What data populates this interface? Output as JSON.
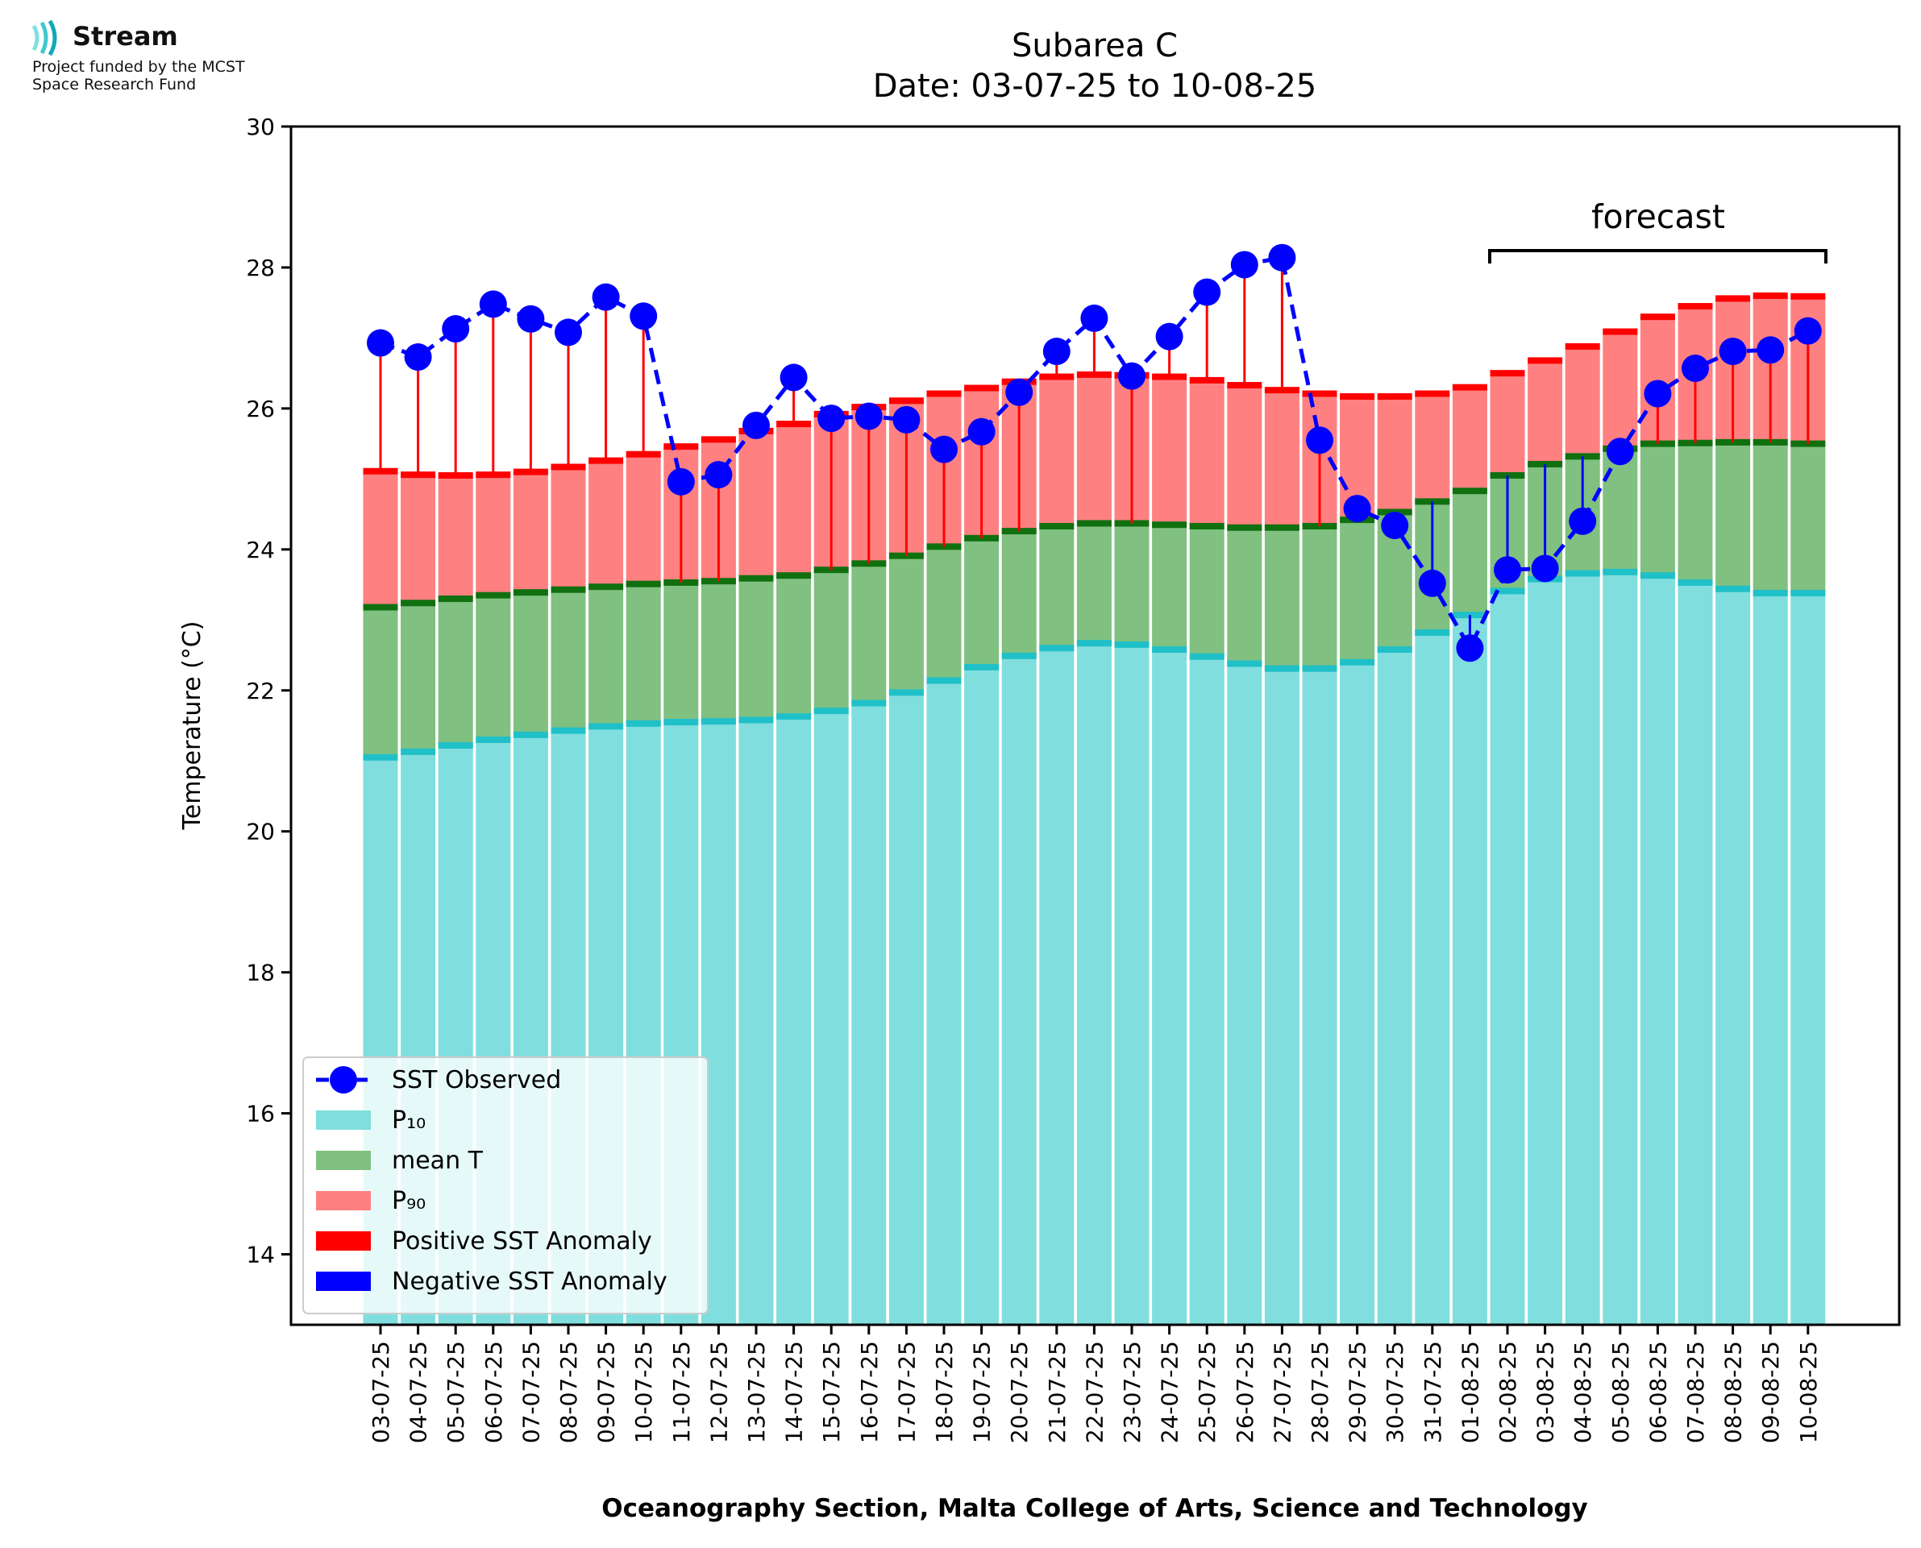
{
  "logo": {
    "name": "Stream",
    "line1": "Project funded by the MCST",
    "line2": "Space Research Fund"
  },
  "colors": {
    "p10": "#80dede",
    "p10_cap": "#20c0c8",
    "mean": "#80c080",
    "mean_cap": "#107010",
    "p90": "#ff8080",
    "p90_cap": "#ff0000",
    "positive_anomaly": "#ff0000",
    "negative_anomaly": "#0000ff",
    "observed": "#0000ff"
  },
  "chart_data": {
    "type": "bar",
    "title": "Subarea C",
    "subtitle": "Date: 03-07-25 to 10-08-25",
    "xlabel": "Oceanography Section, Malta College of Arts, Science and Technology",
    "ylabel": "Temperature (°C)",
    "ylim": [
      13,
      30
    ],
    "yticks": [
      14,
      16,
      18,
      20,
      22,
      24,
      26,
      28,
      30
    ],
    "grid": false,
    "legend_position": "lower-left",
    "annotation": "forecast",
    "forecast_range": [
      "02-08-25",
      "10-08-25"
    ],
    "categories": [
      "03-07-25",
      "04-07-25",
      "05-07-25",
      "06-07-25",
      "07-07-25",
      "08-07-25",
      "09-07-25",
      "10-07-25",
      "11-07-25",
      "12-07-25",
      "13-07-25",
      "14-07-25",
      "15-07-25",
      "16-07-25",
      "17-07-25",
      "18-07-25",
      "19-07-25",
      "20-07-25",
      "21-07-25",
      "22-07-25",
      "23-07-25",
      "24-07-25",
      "25-07-25",
      "26-07-25",
      "27-07-25",
      "28-07-25",
      "29-07-25",
      "30-07-25",
      "31-07-25",
      "01-08-25",
      "02-08-25",
      "03-08-25",
      "04-08-25",
      "05-08-25",
      "06-08-25",
      "07-08-25",
      "08-08-25",
      "09-08-25",
      "10-08-25"
    ],
    "series": [
      {
        "name": "SST Observed",
        "values": [
          26.93,
          26.73,
          27.13,
          27.48,
          27.27,
          27.08,
          27.58,
          27.31,
          24.96,
          25.06,
          25.76,
          26.44,
          25.86,
          25.89,
          25.84,
          25.42,
          25.67,
          26.23,
          26.81,
          27.28,
          26.46,
          27.02,
          27.65,
          28.04,
          28.14,
          25.55,
          24.58,
          24.34,
          23.52,
          22.6,
          23.71,
          23.73,
          24.4,
          25.39,
          26.21,
          26.57,
          26.81,
          26.83,
          27.1
        ]
      },
      {
        "name": "P₁₀",
        "values": [
          21.05,
          21.13,
          21.22,
          21.3,
          21.37,
          21.43,
          21.49,
          21.53,
          21.55,
          21.56,
          21.58,
          21.63,
          21.71,
          21.82,
          21.97,
          22.14,
          22.33,
          22.49,
          22.6,
          22.67,
          22.65,
          22.58,
          22.48,
          22.38,
          22.31,
          22.31,
          22.4,
          22.58,
          22.82,
          23.07,
          23.41,
          23.58,
          23.66,
          23.68,
          23.63,
          23.53,
          23.44,
          23.38,
          23.38
        ]
      },
      {
        "name": "mean T",
        "values": [
          23.18,
          23.24,
          23.3,
          23.35,
          23.39,
          23.43,
          23.47,
          23.51,
          23.53,
          23.55,
          23.59,
          23.63,
          23.71,
          23.8,
          23.91,
          24.04,
          24.16,
          24.26,
          24.33,
          24.37,
          24.37,
          24.35,
          24.33,
          24.31,
          24.31,
          24.33,
          24.42,
          24.53,
          24.68,
          24.83,
          25.05,
          25.21,
          25.32,
          25.43,
          25.5,
          25.51,
          25.52,
          25.52,
          25.5
        ]
      },
      {
        "name": "P₉₀",
        "values": [
          25.11,
          25.06,
          25.05,
          25.06,
          25.1,
          25.17,
          25.26,
          25.35,
          25.46,
          25.56,
          25.68,
          25.78,
          25.92,
          26.02,
          26.11,
          26.21,
          26.29,
          26.38,
          26.45,
          26.48,
          26.47,
          26.45,
          26.4,
          26.33,
          26.26,
          26.21,
          26.17,
          26.17,
          26.21,
          26.3,
          26.5,
          26.68,
          26.88,
          27.09,
          27.3,
          27.45,
          27.56,
          27.6,
          27.59
        ]
      }
    ],
    "legend": [
      "SST Observed",
      "P₁₀",
      "mean T",
      "P₉₀",
      "Positive SST Anomaly",
      "Negative SST Anomaly"
    ]
  }
}
